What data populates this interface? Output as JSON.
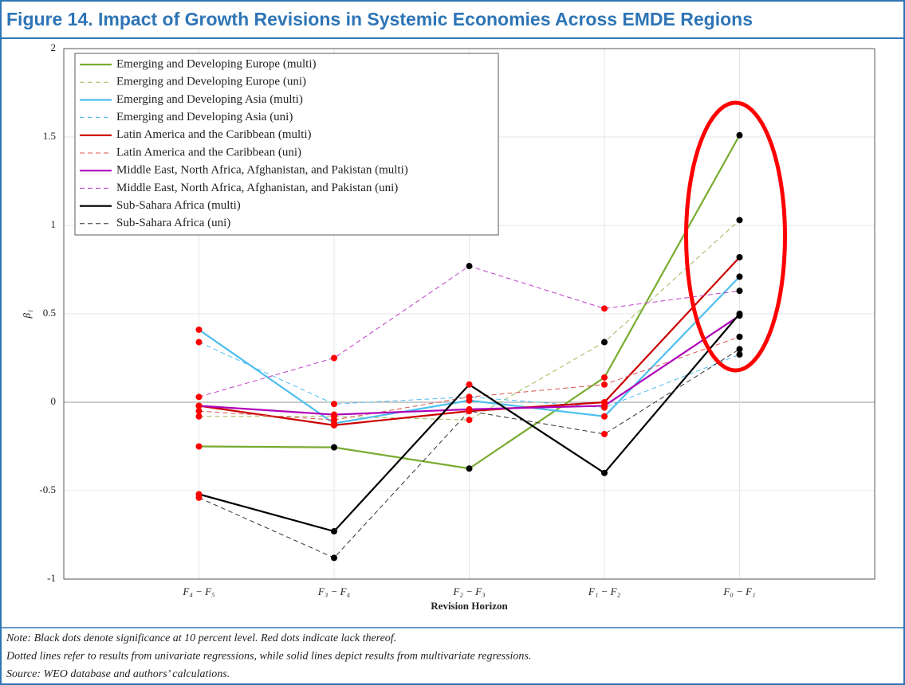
{
  "chart_data": {
    "type": "line",
    "title": "Figure 14. Impact of Growth Revisions in Systemic Economies Across EMDE Regions",
    "xlabel": "Revision Horizon",
    "ylabel": "β₁",
    "categories": [
      "F₄ − F₅",
      "F₃ − F₄",
      "F₂ − F₃",
      "F₁ − F₂",
      "F₀ − F₁"
    ],
    "ylim": [
      -1,
      2
    ],
    "yticks": [
      -1,
      -0.5,
      0,
      0.5,
      1,
      1.5,
      2
    ],
    "grid": true,
    "legend": "upper left",
    "series": [
      {
        "name": "Emerging and Developing Europe (multi)",
        "color": "#77ac30",
        "style": "solid",
        "values": [
          -0.25,
          -0.255,
          -0.375,
          0.14,
          1.51
        ],
        "dot_colors": [
          "#ff0000",
          "#000000",
          "#000000",
          "#ff0000",
          "#000000"
        ]
      },
      {
        "name": "Emerging and Developing Europe (uni)",
        "color": "#9bbb59",
        "style": "dashed",
        "values": [
          -0.08,
          -0.08,
          -0.1,
          0.34,
          1.03
        ],
        "dot_colors": [
          "#ff0000",
          "#ff0000",
          "#ff0000",
          "#000000",
          "#000000"
        ]
      },
      {
        "name": "Emerging and Developing Asia (multi)",
        "color": "#4dbeee",
        "style": "solid",
        "values": [
          0.41,
          -0.12,
          0.01,
          -0.08,
          0.71
        ],
        "dot_colors": [
          "#ff0000",
          "#ff0000",
          "#ff0000",
          "#ff0000",
          "#000000"
        ]
      },
      {
        "name": "Emerging and Developing Asia (uni)",
        "color": "#4dbeee",
        "style": "dashed",
        "values": [
          0.34,
          -0.01,
          0.03,
          -0.03,
          0.27
        ],
        "dot_colors": [
          "#ff0000",
          "#ff0000",
          "#ff0000",
          "#ff0000",
          "#000000"
        ]
      },
      {
        "name": "Latin America and the Caribbean (multi)",
        "color": "#cc0000",
        "style": "solid",
        "values": [
          -0.02,
          -0.13,
          -0.05,
          0.0,
          0.82
        ],
        "dot_colors": [
          "#ff0000",
          "#ff0000",
          "#ff0000",
          "#ff0000",
          "#000000"
        ]
      },
      {
        "name": "Latin America and the Caribbean (uni)",
        "color": "#d9534f",
        "style": "dashed",
        "values": [
          -0.05,
          -0.1,
          0.03,
          0.1,
          0.37
        ],
        "dot_colors": [
          "#ff0000",
          "#ff0000",
          "#ff0000",
          "#ff0000",
          "#000000"
        ]
      },
      {
        "name": "Middle East, North Africa, Afghanistan, and Pakistan (multi)",
        "color": "#b000b8",
        "style": "solid",
        "values": [
          -0.02,
          -0.07,
          -0.04,
          -0.02,
          0.49
        ],
        "dot_colors": [
          "#ff0000",
          "#ff0000",
          "#ff0000",
          "#ff0000",
          "#000000"
        ]
      },
      {
        "name": "Middle East, North Africa, Afghanistan, and Pakistan (uni)",
        "color": "#c040c8",
        "style": "dashed",
        "values": [
          0.03,
          0.25,
          0.77,
          0.53,
          0.63
        ],
        "dot_colors": [
          "#ff0000",
          "#ff0000",
          "#000000",
          "#ff0000",
          "#000000"
        ]
      },
      {
        "name": "Sub-Sahara Africa (multi)",
        "color": "#000000",
        "style": "solid",
        "values": [
          -0.52,
          -0.73,
          0.1,
          -0.4,
          0.5
        ],
        "dot_colors": [
          "#ff0000",
          "#000000",
          "#ff0000",
          "#000000",
          "#000000"
        ]
      },
      {
        "name": "Sub-Sahara Africa (uni)",
        "color": "#333333",
        "style": "dashed",
        "values": [
          -0.54,
          -0.88,
          -0.05,
          -0.18,
          0.3
        ],
        "dot_colors": [
          "#ff0000",
          "#000000",
          "#ff0000",
          "#ff0000",
          "#000000"
        ]
      }
    ],
    "notes": [
      "Note: Black dots denote significance at 10 percent level. Red dots indicate lack thereof.",
      "Dotted lines refer to results from univariate regressions, while solid lines depict results from multivariate regressions.",
      "Source: WEO database and authors’ calculations."
    ]
  }
}
